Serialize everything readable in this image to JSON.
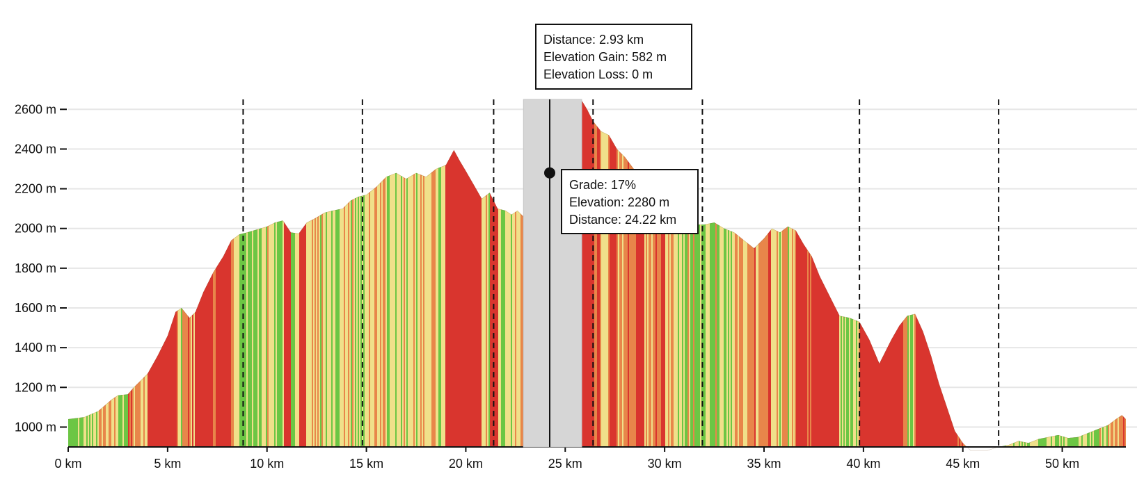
{
  "chart_data": {
    "type": "area",
    "title": "",
    "xlabel": "",
    "ylabel": "",
    "x_unit": "km",
    "y_unit": "m",
    "xlim": [
      0,
      53.2
    ],
    "ylim": [
      900,
      2650
    ],
    "x_ticks": [
      0,
      5,
      10,
      15,
      20,
      25,
      30,
      35,
      40,
      45,
      50
    ],
    "x_tick_labels": [
      "0 km",
      "5 km",
      "10 km",
      "15 km",
      "20 km",
      "25 km",
      "30 km",
      "35 km",
      "40 km",
      "45 km",
      "50 km"
    ],
    "y_ticks": [
      1000,
      1200,
      1400,
      1600,
      1800,
      2000,
      2200,
      2400,
      2600
    ],
    "y_tick_labels": [
      "1000 m",
      "1200 m",
      "1400 m",
      "1600 m",
      "1800 m",
      "2000 m",
      "2200 m",
      "2400 m",
      "2600 m"
    ],
    "grid": true,
    "profile": {
      "x": [
        0,
        0.8,
        1.5,
        2.2,
        2.5,
        3.0,
        3.3,
        3.6,
        4.0,
        4.5,
        5.0,
        5.4,
        5.7,
        6.1,
        6.4,
        6.8,
        7.3,
        7.8,
        8.2,
        8.6,
        9.0,
        9.5,
        10.0,
        10.4,
        10.8,
        11.2,
        11.6,
        12.0,
        12.4,
        12.9,
        13.3,
        13.8,
        14.2,
        14.6,
        15.0,
        15.5,
        16.0,
        16.5,
        17.0,
        17.5,
        18.0,
        18.5,
        19.0,
        19.4,
        19.7,
        20.0,
        20.4,
        20.8,
        21.2,
        21.6,
        22.0,
        22.3,
        22.6,
        23.0,
        23.5,
        24.22,
        24.6,
        25.0,
        25.4,
        25.8,
        26.1,
        26.4,
        26.8,
        27.2,
        27.6,
        28.0,
        28.6,
        29.0,
        29.5,
        30.0,
        30.5,
        31.0,
        31.5,
        32.0,
        32.5,
        33.0,
        33.5,
        34.0,
        34.5,
        35.0,
        35.4,
        35.8,
        36.2,
        36.6,
        37.0,
        37.4,
        37.8,
        38.3,
        38.8,
        39.3,
        39.8,
        40.3,
        40.8,
        41.1,
        41.4,
        41.8,
        42.2,
        42.6,
        43.0,
        43.4,
        43.8,
        44.2,
        44.6,
        45.0,
        45.4,
        45.8,
        46.2,
        46.8,
        47.3,
        47.8,
        48.3,
        48.8,
        49.3,
        49.8,
        50.3,
        50.8,
        51.3,
        51.8,
        52.3,
        52.7,
        53.0,
        53.2
      ],
      "elevation": [
        1040,
        1050,
        1080,
        1140,
        1160,
        1165,
        1200,
        1230,
        1270,
        1360,
        1460,
        1580,
        1600,
        1550,
        1580,
        1680,
        1780,
        1860,
        1940,
        1970,
        1980,
        1995,
        2010,
        2030,
        2040,
        1980,
        1975,
        2030,
        2050,
        2080,
        2090,
        2100,
        2140,
        2160,
        2170,
        2210,
        2260,
        2280,
        2250,
        2280,
        2260,
        2300,
        2320,
        2395,
        2340,
        2290,
        2220,
        2150,
        2180,
        2100,
        2090,
        2070,
        2090,
        2050,
        2150,
        2280,
        2420,
        2550,
        2640,
        2650,
        2600,
        2540,
        2490,
        2470,
        2400,
        2360,
        2280,
        2200,
        2160,
        2100,
        2060,
        2040,
        2020,
        2020,
        2030,
        2000,
        1980,
        1940,
        1900,
        1950,
        2000,
        1980,
        2010,
        1990,
        1920,
        1860,
        1760,
        1660,
        1560,
        1550,
        1530,
        1440,
        1320,
        1380,
        1440,
        1510,
        1560,
        1570,
        1480,
        1360,
        1220,
        1100,
        980,
        920,
        880,
        880,
        880,
        900,
        910,
        930,
        920,
        940,
        950,
        960,
        945,
        950,
        970,
        990,
        1010,
        1040,
        1060,
        1040
      ]
    },
    "markers_km": [
      8.8,
      14.8,
      21.4,
      26.4,
      31.9,
      39.8,
      46.8
    ],
    "selection": {
      "x_range": [
        22.9,
        25.83
      ],
      "distance": "2.93 km",
      "elevation_gain": "582 m",
      "elevation_loss": "0 m"
    },
    "hover_point": {
      "distance_km": 24.22,
      "elevation_m": 2280,
      "grade_pct": 17
    },
    "grade_colors": {
      "flat": "#6cc644",
      "moderate": "#f0e08a",
      "steep": "#e8864a",
      "very_steep": "#d9352e"
    }
  },
  "tooltips": {
    "selection": {
      "line1": "Distance: 2.93 km",
      "line2": "Elevation Gain: 582 m",
      "line3": "Elevation Loss: 0 m"
    },
    "point": {
      "line1": "Grade: 17%",
      "line2": "Elevation: 2280 m",
      "line3": "Distance: 24.22 km"
    }
  }
}
